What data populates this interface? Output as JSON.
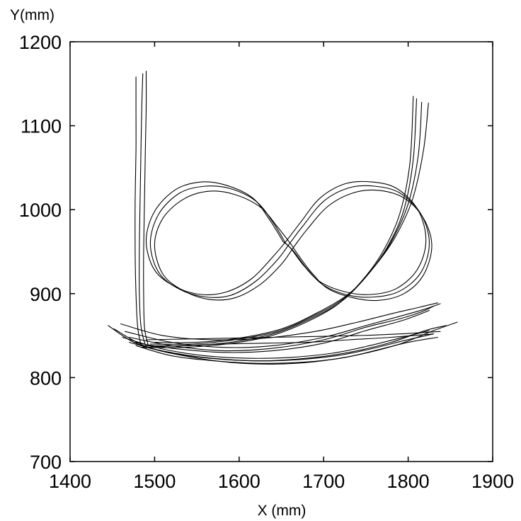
{
  "chart_data": {
    "type": "line",
    "title": "",
    "xlabel": "X (mm)",
    "ylabel": "Y(mm)",
    "xlim": [
      1400,
      1900
    ],
    "ylim": [
      700,
      1200
    ],
    "xticks": [
      1400,
      1500,
      1600,
      1700,
      1800,
      1900
    ],
    "yticks": [
      700,
      800,
      900,
      1000,
      1100,
      1200
    ],
    "grid": false,
    "line_color": "#000000",
    "series": [
      {
        "x": [
          1486,
          1485,
          1484,
          1483,
          1482,
          1482,
          1484,
          1490
        ],
        "y": [
          1162,
          1130,
          1080,
          1020,
          960,
          900,
          860,
          835
        ]
      },
      {
        "x": [
          1478,
          1478,
          1478,
          1477,
          1477,
          1478,
          1480,
          1484
        ],
        "y": [
          1158,
          1120,
          1070,
          1010,
          950,
          900,
          860,
          838
        ]
      },
      {
        "x": [
          1490,
          1490,
          1489,
          1488,
          1487,
          1487,
          1488,
          1492
        ],
        "y": [
          1165,
          1120,
          1070,
          1010,
          950,
          900,
          860,
          840
        ]
      },
      {
        "x": [
          1655,
          1640,
          1620,
          1590,
          1560,
          1530,
          1505,
          1495,
          1505,
          1530,
          1560,
          1590,
          1620,
          1645,
          1660,
          1675,
          1700,
          1730,
          1760,
          1790,
          1815,
          1825,
          1815,
          1790,
          1760,
          1730,
          1700,
          1680,
          1665,
          1655
        ],
        "y": [
          960,
          985,
          1010,
          1025,
          1028,
          1020,
          995,
          960,
          925,
          905,
          896,
          898,
          915,
          940,
          960,
          980,
          1010,
          1026,
          1028,
          1020,
          995,
          960,
          925,
          903,
          896,
          898,
          910,
          930,
          950,
          960
        ]
      },
      {
        "x": [
          1662,
          1645,
          1625,
          1595,
          1565,
          1535,
          1510,
          1500,
          1510,
          1535,
          1565,
          1595,
          1625,
          1650,
          1665,
          1680,
          1705,
          1735,
          1765,
          1795,
          1818,
          1828,
          1818,
          1795,
          1765,
          1735,
          1705,
          1685,
          1670,
          1662
        ],
        "y": [
          958,
          980,
          1003,
          1018,
          1022,
          1013,
          990,
          958,
          923,
          903,
          893,
          895,
          911,
          935,
          956,
          976,
          1004,
          1020,
          1023,
          1014,
          990,
          957,
          922,
          900,
          892,
          895,
          906,
          926,
          946,
          958
        ]
      },
      {
        "x": [
          1652,
          1636,
          1616,
          1585,
          1555,
          1525,
          1500,
          1490,
          1500,
          1525,
          1555,
          1585,
          1615,
          1640,
          1656,
          1672,
          1696,
          1726,
          1757,
          1787,
          1812,
          1821,
          1811,
          1786,
          1756,
          1726,
          1696,
          1676,
          1661,
          1652
        ],
        "y": [
          962,
          988,
          1014,
          1029,
          1033,
          1024,
          998,
          963,
          928,
          908,
          899,
          902,
          918,
          944,
          963,
          984,
          1014,
          1031,
          1033,
          1025,
          999,
          963,
          929,
          906,
          899,
          902,
          914,
          934,
          954,
          962
        ]
      },
      {
        "x": [
          1470,
          1520,
          1580,
          1640,
          1700,
          1750,
          1790,
          1815,
          1830
        ],
        "y": [
          848,
          838,
          832,
          835,
          845,
          860,
          870,
          878,
          885
        ]
      },
      {
        "x": [
          1465,
          1520,
          1580,
          1640,
          1700,
          1750,
          1790,
          1818,
          1838
        ],
        "y": [
          855,
          842,
          836,
          838,
          848,
          862,
          873,
          881,
          888
        ]
      },
      {
        "x": [
          1475,
          1520,
          1580,
          1640,
          1700,
          1750,
          1790,
          1810,
          1825
        ],
        "y": [
          842,
          835,
          830,
          832,
          841,
          856,
          867,
          874,
          880
        ]
      },
      {
        "x": [
          1460,
          1510,
          1570,
          1630,
          1690,
          1740,
          1780,
          1810,
          1835
        ],
        "y": [
          864,
          850,
          845,
          847,
          855,
          866,
          876,
          883,
          889
        ]
      },
      {
        "x": [
          1478,
          1520,
          1570,
          1620,
          1670,
          1720,
          1760,
          1800,
          1835
        ],
        "y": [
          838,
          826,
          820,
          817,
          818,
          823,
          832,
          842,
          848
        ]
      },
      {
        "x": [
          1470,
          1515,
          1565,
          1615,
          1665,
          1715,
          1755,
          1795,
          1830
        ],
        "y": [
          842,
          830,
          823,
          820,
          821,
          826,
          834,
          844,
          852
        ]
      },
      {
        "x": [
          1462,
          1510,
          1560,
          1610,
          1660,
          1710,
          1750,
          1790,
          1825
        ],
        "y": [
          848,
          834,
          826,
          823,
          824,
          829,
          837,
          847,
          856
        ]
      },
      {
        "x": [
          1445,
          1480,
          1530,
          1580,
          1630,
          1680,
          1730,
          1780,
          1820,
          1845
        ],
        "y": [
          862,
          840,
          828,
          822,
          820,
          823,
          830,
          842,
          856,
          862
        ]
      },
      {
        "x": [
          1452,
          1490,
          1540,
          1590,
          1640,
          1690,
          1740,
          1790,
          1830,
          1858
        ],
        "y": [
          858,
          837,
          825,
          818,
          816,
          819,
          827,
          840,
          856,
          866
        ]
      },
      {
        "x": [
          1485,
          1530,
          1580,
          1630,
          1680,
          1730,
          1780,
          1830
        ],
        "y": [
          836,
          838,
          840,
          841,
          842,
          845,
          848,
          852
        ]
      },
      {
        "x": [
          1490,
          1540,
          1590,
          1640,
          1690,
          1740,
          1790,
          1838
        ],
        "y": [
          845,
          846,
          847,
          848,
          849,
          850,
          852,
          855
        ]
      },
      {
        "x": [
          1490,
          1540,
          1590,
          1640,
          1680,
          1720,
          1750,
          1775,
          1795,
          1806,
          1810
        ],
        "y": [
          838,
          838,
          842,
          852,
          868,
          890,
          920,
          955,
          1000,
          1060,
          1132
        ]
      },
      {
        "x": [
          1495,
          1545,
          1595,
          1645,
          1685,
          1725,
          1755,
          1780,
          1800,
          1812,
          1816
        ],
        "y": [
          840,
          840,
          845,
          855,
          872,
          895,
          926,
          962,
          1007,
          1065,
          1128
        ]
      },
      {
        "x": [
          1485,
          1535,
          1585,
          1635,
          1675,
          1715,
          1745,
          1770,
          1790,
          1802,
          1806
        ],
        "y": [
          836,
          836,
          840,
          849,
          864,
          886,
          915,
          950,
          995,
          1055,
          1135
        ]
      },
      {
        "x": [
          1500,
          1550,
          1600,
          1650,
          1690,
          1730,
          1760,
          1785,
          1805,
          1818,
          1824
        ],
        "y": [
          842,
          842,
          847,
          858,
          876,
          900,
          932,
          968,
          1012,
          1070,
          1127
        ]
      }
    ]
  }
}
